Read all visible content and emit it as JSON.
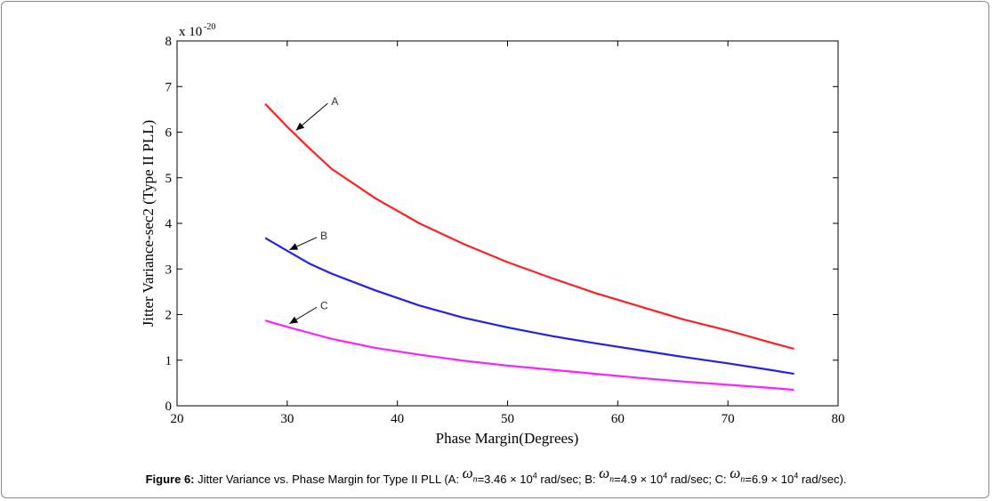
{
  "chart_data": {
    "type": "line",
    "xlabel": "Phase Margin(Degrees)",
    "ylabel": "Jitter Variance-sec2 (Type II PLL)",
    "y_exponent_label": "x 10",
    "y_exponent_power": "-20",
    "xlim": [
      20,
      80
    ],
    "ylim": [
      0,
      8
    ],
    "xticks": [
      20,
      30,
      40,
      50,
      60,
      70,
      80
    ],
    "yticks": [
      0,
      1,
      2,
      3,
      4,
      5,
      6,
      7,
      8
    ],
    "grid": false,
    "series": [
      {
        "name": "A",
        "color": "#ff2020",
        "x": [
          28,
          30,
          32,
          34,
          38,
          42,
          46,
          50,
          54,
          58,
          62,
          66,
          70,
          74,
          76
        ],
        "y": [
          6.62,
          6.12,
          5.65,
          5.2,
          4.55,
          4.0,
          3.55,
          3.15,
          2.8,
          2.47,
          2.18,
          1.89,
          1.65,
          1.38,
          1.25
        ]
      },
      {
        "name": "B",
        "color": "#2020f0",
        "x": [
          28,
          30,
          32,
          34,
          38,
          42,
          46,
          50,
          54,
          58,
          62,
          66,
          70,
          74,
          76
        ],
        "y": [
          3.68,
          3.4,
          3.12,
          2.9,
          2.53,
          2.2,
          1.93,
          1.72,
          1.53,
          1.37,
          1.22,
          1.07,
          0.93,
          0.78,
          0.7
        ]
      },
      {
        "name": "C",
        "color": "#ff20ff",
        "x": [
          28,
          30,
          32,
          34,
          38,
          42,
          46,
          50,
          54,
          58,
          62,
          66,
          70,
          74,
          76
        ],
        "y": [
          1.87,
          1.73,
          1.6,
          1.47,
          1.27,
          1.12,
          0.99,
          0.88,
          0.79,
          0.7,
          0.61,
          0.53,
          0.46,
          0.39,
          0.35
        ]
      }
    ],
    "annotations": [
      {
        "text": "A",
        "target_x": 30.8,
        "target_y": 6.04,
        "label_x": 34.0,
        "label_y": 6.67
      },
      {
        "text": "B",
        "target_x": 30.2,
        "target_y": 3.42,
        "label_x": 33.0,
        "label_y": 3.73
      },
      {
        "text": "C",
        "target_x": 30.2,
        "target_y": 1.8,
        "label_x": 33.0,
        "label_y": 2.2
      }
    ]
  },
  "caption": {
    "label": "Figure 6:",
    "text_intro": " Jitter Variance vs. Phase Margin for Type II PLL (A: ",
    "omega": "ω",
    "omega_sub": "n",
    "a_value": "=3.46 × 10",
    "sup4": "4",
    "a_unit": " rad/sec; B: ",
    "b_value": "=4.9 × 10",
    "b_unit": " rad/sec; C: ",
    "c_value": "=6.9 × 10",
    "c_unit": " rad/sec)."
  }
}
